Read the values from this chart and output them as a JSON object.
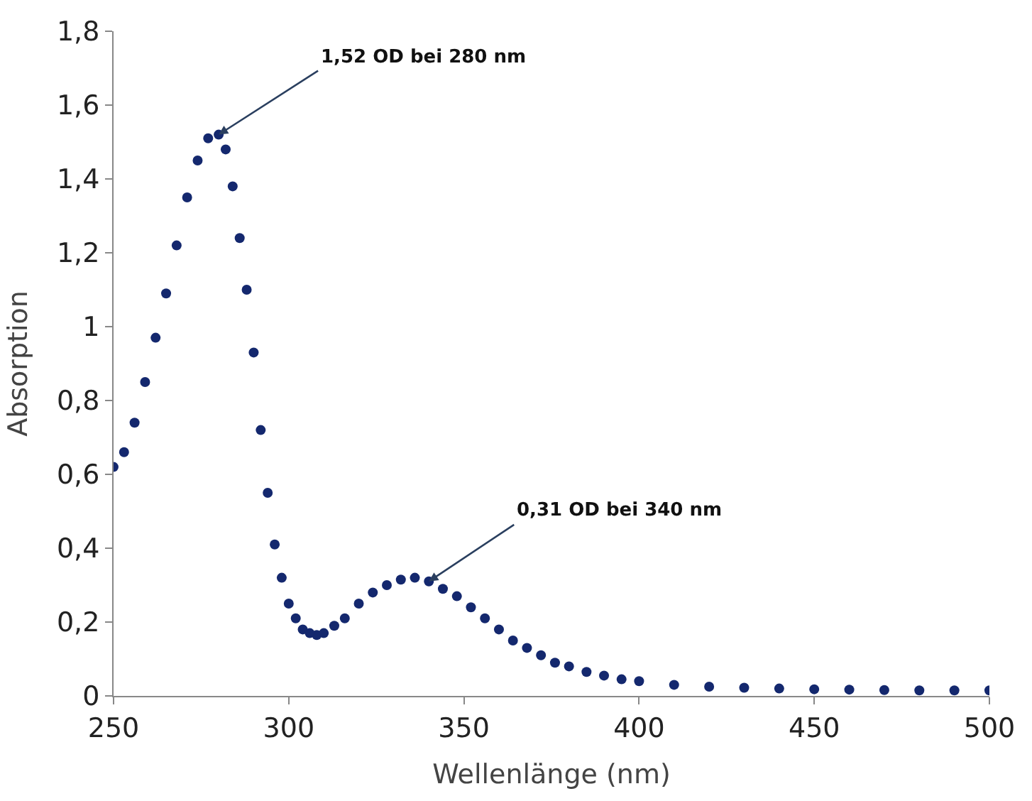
{
  "chart_data": {
    "type": "scatter",
    "xlabel": "Wellenlänge (nm)",
    "ylabel": "Absorption",
    "x": [
      250,
      253,
      256,
      259,
      262,
      265,
      268,
      271,
      274,
      277,
      280,
      282,
      284,
      286,
      288,
      290,
      292,
      294,
      296,
      298,
      300,
      302,
      304,
      306,
      308,
      310,
      313,
      316,
      320,
      324,
      328,
      332,
      336,
      340,
      344,
      348,
      352,
      356,
      360,
      364,
      368,
      372,
      376,
      380,
      385,
      390,
      395,
      400,
      410,
      420,
      430,
      440,
      450,
      460,
      470,
      480,
      490,
      500
    ],
    "series": [
      {
        "color": "#14286e",
        "values": [
          0.62,
          0.66,
          0.74,
          0.85,
          0.97,
          1.09,
          1.22,
          1.35,
          1.45,
          1.51,
          1.52,
          1.48,
          1.38,
          1.24,
          1.1,
          0.93,
          0.72,
          0.55,
          0.41,
          0.32,
          0.25,
          0.21,
          0.18,
          0.17,
          0.165,
          0.17,
          0.19,
          0.21,
          0.25,
          0.28,
          0.3,
          0.315,
          0.32,
          0.31,
          0.29,
          0.27,
          0.24,
          0.21,
          0.18,
          0.15,
          0.13,
          0.11,
          0.09,
          0.08,
          0.065,
          0.055,
          0.045,
          0.04,
          0.03,
          0.025,
          0.022,
          0.02,
          0.018,
          0.017,
          0.016,
          0.015,
          0.015,
          0.015
        ]
      }
    ],
    "xlim": [
      250,
      500
    ],
    "xticks": [
      250,
      300,
      350,
      400,
      450,
      500
    ],
    "ylim": [
      0,
      1.8
    ],
    "yticks": [
      0,
      {
        "value": 0.2,
        "label": "0,2"
      },
      {
        "value": 0.4,
        "label": "0,4"
      },
      {
        "value": 0.6,
        "label": "0,6"
      },
      {
        "value": 0.8,
        "label": "0,8"
      },
      1,
      {
        "value": 1.2,
        "label": "1,2"
      },
      {
        "value": 1.4,
        "label": "1,4"
      },
      {
        "value": 1.6,
        "label": "1,6"
      },
      {
        "value": 1.8,
        "label": "1,8"
      }
    ],
    "marker": "circle",
    "annotations": [
      {
        "text": "1,52 OD bei 280 nm",
        "x": 280,
        "y": 1.52
      },
      {
        "text": "0,31 OD bei 340 nm",
        "x": 340,
        "y": 0.31
      }
    ]
  }
}
